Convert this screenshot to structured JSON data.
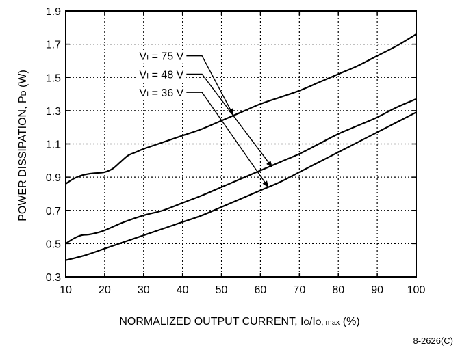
{
  "chart_data": {
    "type": "line",
    "title": "",
    "xlabel": {
      "main": "NORMALIZED OUTPUT CURRENT, ",
      "i1": "I",
      "s1": "O",
      "sep": "/I",
      "s2": "O, max",
      "tail": " (%)"
    },
    "ylabel": {
      "main": "POWER DISSIPATION, ",
      "sym": "P",
      "sub": "D",
      "tail": " (W)"
    },
    "xlim": [
      10,
      100
    ],
    "ylim": [
      0.3,
      1.9
    ],
    "x_ticks": [
      "10",
      "20",
      "30",
      "40",
      "50",
      "60",
      "70",
      "80",
      "90",
      "100"
    ],
    "y_ticks": [
      "0.3",
      "0.5",
      "0.7",
      "0.9",
      "1.1",
      "1.3",
      "1.5",
      "1.7",
      "1.9"
    ],
    "grid": true,
    "series": [
      {
        "name": {
          "v": "V",
          "sub": "I",
          "eq": " = 75 V"
        },
        "x": [
          10,
          12,
          14,
          16,
          18,
          20,
          22,
          24,
          26,
          28,
          30,
          35,
          40,
          45,
          50,
          55,
          60,
          65,
          70,
          75,
          80,
          85,
          90,
          95,
          100
        ],
        "y": [
          0.86,
          0.89,
          0.91,
          0.92,
          0.925,
          0.93,
          0.95,
          0.99,
          1.03,
          1.05,
          1.07,
          1.11,
          1.15,
          1.19,
          1.24,
          1.29,
          1.34,
          1.38,
          1.42,
          1.47,
          1.52,
          1.57,
          1.63,
          1.69,
          1.76
        ]
      },
      {
        "name": {
          "v": "V",
          "sub": "I",
          "eq": " = 48 V"
        },
        "x": [
          10,
          12,
          14,
          16,
          18,
          20,
          25,
          30,
          35,
          40,
          45,
          50,
          55,
          60,
          65,
          70,
          75,
          80,
          85,
          90,
          95,
          100
        ],
        "y": [
          0.5,
          0.53,
          0.55,
          0.555,
          0.565,
          0.58,
          0.63,
          0.67,
          0.7,
          0.745,
          0.79,
          0.84,
          0.89,
          0.94,
          0.99,
          1.04,
          1.1,
          1.16,
          1.21,
          1.26,
          1.32,
          1.37
        ]
      },
      {
        "name": {
          "v": "V",
          "sub": "I",
          "eq": " = 36 V"
        },
        "x": [
          10,
          15,
          20,
          25,
          30,
          35,
          40,
          45,
          50,
          55,
          60,
          65,
          70,
          75,
          80,
          85,
          90,
          95,
          100
        ],
        "y": [
          0.4,
          0.43,
          0.47,
          0.51,
          0.55,
          0.59,
          0.63,
          0.67,
          0.72,
          0.77,
          0.82,
          0.87,
          0.93,
          0.99,
          1.05,
          1.11,
          1.17,
          1.23,
          1.29
        ]
      }
    ],
    "annotation_label_x": 41,
    "annotation_label_y": [
      1.63,
      1.52,
      1.41
    ],
    "annotation_corner_x": 45,
    "annotation_arrow_target": [
      [
        53,
        1.275
      ],
      [
        63,
        0.96
      ],
      [
        62,
        0.84
      ]
    ],
    "figure_id": "8-2626(C)"
  }
}
